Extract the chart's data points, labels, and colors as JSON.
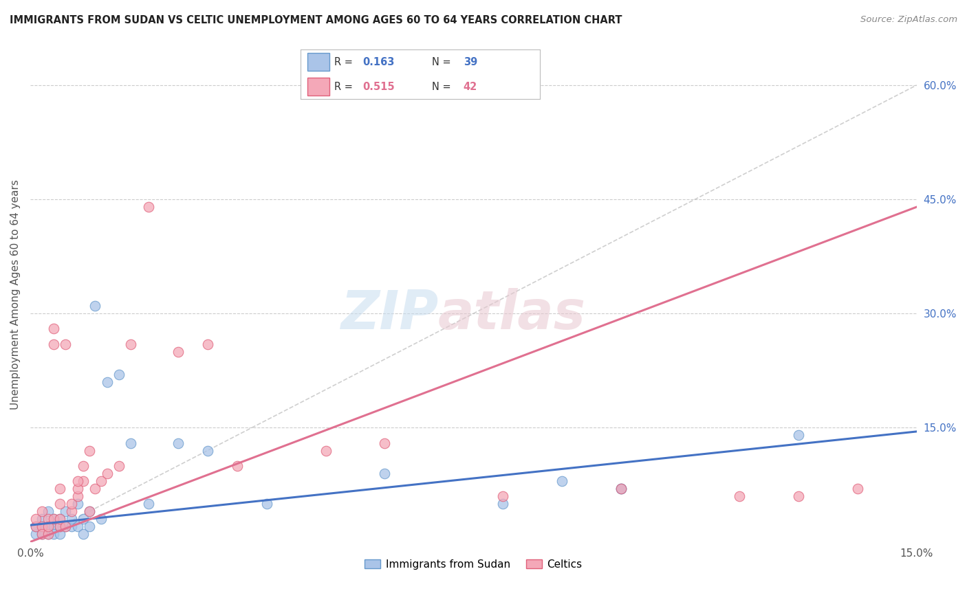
{
  "title": "IMMIGRANTS FROM SUDAN VS CELTIC UNEMPLOYMENT AMONG AGES 60 TO 64 YEARS CORRELATION CHART",
  "source": "Source: ZipAtlas.com",
  "ylabel": "Unemployment Among Ages 60 to 64 years",
  "xmin": 0.0,
  "xmax": 0.15,
  "ymin": 0.0,
  "ymax": 0.65,
  "gridline_y": [
    0.15,
    0.3,
    0.45,
    0.6
  ],
  "series1_color": "#aac4e8",
  "series1_edge": "#6699cc",
  "series2_color": "#f4a8b8",
  "series2_edge": "#e0607a",
  "line1_color": "#4472c4",
  "line2_color": "#e07090",
  "R1": 0.163,
  "N1": 39,
  "R2": 0.515,
  "N2": 42,
  "legend_label1": "Immigrants from Sudan",
  "legend_label2": "Celtics",
  "title_color": "#222222",
  "source_color": "#888888",
  "legend_r1_color": "#4472c4",
  "legend_r2_color": "#e07090",
  "ref_line_color": "#bbbbbb",
  "blue_line_x": [
    0.0,
    0.15
  ],
  "blue_line_y": [
    0.022,
    0.145
  ],
  "pink_line_x": [
    0.0,
    0.15
  ],
  "pink_line_y": [
    0.0,
    0.44
  ],
  "ref_line_x": [
    0.0,
    0.15
  ],
  "ref_line_y": [
    0.0,
    0.6
  ],
  "s1x": [
    0.001,
    0.001,
    0.002,
    0.002,
    0.002,
    0.003,
    0.003,
    0.003,
    0.004,
    0.004,
    0.004,
    0.005,
    0.005,
    0.005,
    0.006,
    0.006,
    0.007,
    0.007,
    0.008,
    0.008,
    0.009,
    0.009,
    0.01,
    0.01,
    0.011,
    0.012,
    0.013,
    0.015,
    0.017,
    0.02,
    0.025,
    0.03,
    0.04,
    0.06,
    0.08,
    0.09,
    0.1,
    0.13,
    0.1
  ],
  "s1y": [
    0.01,
    0.02,
    0.01,
    0.03,
    0.02,
    0.01,
    0.02,
    0.04,
    0.02,
    0.03,
    0.01,
    0.02,
    0.03,
    0.01,
    0.02,
    0.04,
    0.02,
    0.03,
    0.02,
    0.05,
    0.03,
    0.01,
    0.02,
    0.04,
    0.31,
    0.03,
    0.21,
    0.22,
    0.13,
    0.05,
    0.13,
    0.12,
    0.05,
    0.09,
    0.05,
    0.08,
    0.07,
    0.14,
    0.07
  ],
  "s2x": [
    0.001,
    0.001,
    0.002,
    0.002,
    0.002,
    0.003,
    0.003,
    0.003,
    0.004,
    0.004,
    0.004,
    0.005,
    0.005,
    0.005,
    0.006,
    0.006,
    0.007,
    0.007,
    0.008,
    0.008,
    0.009,
    0.009,
    0.01,
    0.01,
    0.011,
    0.012,
    0.013,
    0.015,
    0.017,
    0.02,
    0.025,
    0.03,
    0.035,
    0.05,
    0.06,
    0.08,
    0.1,
    0.12,
    0.13,
    0.14,
    0.005,
    0.008
  ],
  "s2y": [
    0.02,
    0.03,
    0.02,
    0.01,
    0.04,
    0.01,
    0.03,
    0.02,
    0.03,
    0.26,
    0.28,
    0.02,
    0.05,
    0.03,
    0.02,
    0.26,
    0.04,
    0.05,
    0.06,
    0.07,
    0.08,
    0.1,
    0.12,
    0.04,
    0.07,
    0.08,
    0.09,
    0.1,
    0.26,
    0.44,
    0.25,
    0.26,
    0.1,
    0.12,
    0.13,
    0.06,
    0.07,
    0.06,
    0.06,
    0.07,
    0.07,
    0.08
  ]
}
